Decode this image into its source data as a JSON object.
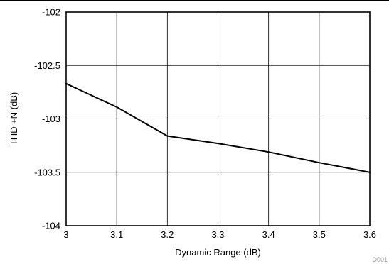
{
  "chart_data": {
    "type": "line",
    "title": "",
    "xlabel": "Dynamic Range (dB)",
    "ylabel": "THD +N (dB)",
    "xlim": [
      3,
      3.6
    ],
    "ylim": [
      -104,
      -102
    ],
    "x_ticks": [
      3,
      3.1,
      3.2,
      3.3,
      3.4,
      3.5,
      3.6
    ],
    "x_tick_labels": [
      "3",
      "3.1",
      "3.2",
      "3.3",
      "3.4",
      "3.5",
      "3.6"
    ],
    "y_ticks": [
      -102,
      -102.5,
      -103,
      -103.5,
      -104
    ],
    "y_tick_labels": [
      "-102",
      "-102.5",
      "-103",
      "-103.5",
      "-104"
    ],
    "grid": true,
    "legend": "none",
    "series": [
      {
        "color": "#000000",
        "x": [
          3,
          3.1,
          3.2,
          3.3,
          3.4,
          3.5,
          3.6
        ],
        "y": [
          -102.67,
          -102.89,
          -103.16,
          -103.23,
          -103.31,
          -103.41,
          -103.5
        ]
      }
    ],
    "annotation": "D001"
  }
}
